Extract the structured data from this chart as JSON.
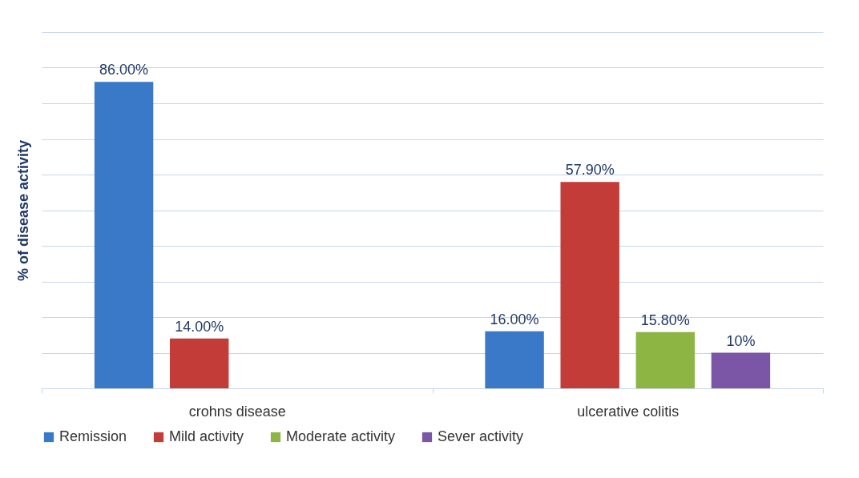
{
  "chart_data": {
    "type": "bar",
    "ylabel": "% of disease activity",
    "categories": [
      "crohns disease",
      "ulcerative colitis"
    ],
    "series": [
      {
        "name": "Remission",
        "color": "#3a78c8",
        "values": [
          86,
          16
        ],
        "value_labels": [
          "86.00%",
          "16.00%"
        ]
      },
      {
        "name": "Mild activity",
        "color": "#c43c37",
        "values": [
          14,
          57.9
        ],
        "value_labels": [
          "14.00%",
          "57.90%"
        ]
      },
      {
        "name": "Moderate activity",
        "color": "#8db544",
        "values": [
          null,
          15.8
        ],
        "value_labels": [
          null,
          "15.80%"
        ]
      },
      {
        "name": "Sever activity",
        "color": "#7b55a6",
        "values": [
          null,
          10
        ],
        "value_labels": [
          null,
          "10%"
        ]
      }
    ],
    "ylim": [
      0,
      100
    ],
    "yticks": [
      {
        "value": 0,
        "label": null
      },
      {
        "value": 10,
        "label": null
      },
      {
        "value": 20,
        "label": null
      },
      {
        "value": 30,
        "label": null
      },
      {
        "value": 40,
        "label": null
      },
      {
        "value": 50,
        "label": null
      },
      {
        "value": 60,
        "label": null
      },
      {
        "value": 70,
        "label": null
      },
      {
        "value": 80,
        "label": null
      },
      {
        "value": 90,
        "label": null
      },
      {
        "value": 100,
        "label": null
      }
    ],
    "tick_labels": "x",
    "grid": "y",
    "legend": "bottom"
  }
}
